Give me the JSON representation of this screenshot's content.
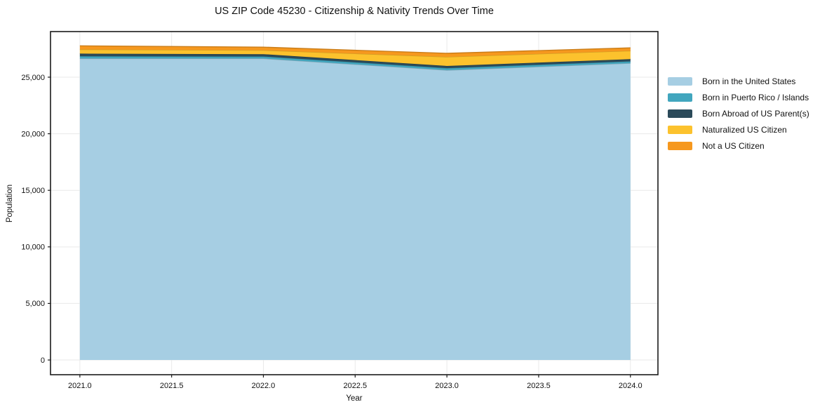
{
  "title": "US ZIP Code 45230 - Citizenship & Nativity Trends Over Time",
  "chart_data": {
    "type": "area",
    "stacked": true,
    "title": "US ZIP Code 45230 - Citizenship & Nativity Trends Over Time",
    "xlabel": "Year",
    "ylabel": "Population",
    "x": [
      2021,
      2022,
      2023,
      2024
    ],
    "series": [
      {
        "name": "Born in the United States",
        "color": "#A6CEE3",
        "values": [
          26650,
          26650,
          25620,
          26230
        ]
      },
      {
        "name": "Born in Puerto Rico / Islands",
        "color": "#41A6BE",
        "values": [
          200,
          180,
          180,
          170
        ]
      },
      {
        "name": "Born Abroad of US Parent(s)",
        "color": "#2B4A5A",
        "values": [
          230,
          200,
          190,
          190
        ]
      },
      {
        "name": "Naturalized US Citizen",
        "color": "#FCC22D",
        "values": [
          370,
          350,
          800,
          740
        ]
      },
      {
        "name": "Not a US Citizen",
        "color": "#F6981E",
        "values": [
          320,
          270,
          320,
          260
        ]
      }
    ],
    "totals": [
      27770,
      27650,
      27110,
      27590
    ],
    "x_ticks": [
      "2021.0",
      "2021.5",
      "2022.0",
      "2022.5",
      "2023.0",
      "2023.5",
      "2024.0"
    ],
    "x_tick_values": [
      2021.0,
      2021.5,
      2022.0,
      2022.5,
      2023.0,
      2023.5,
      2024.0
    ],
    "y_ticks": [
      "0",
      "5,000",
      "10,000",
      "15,000",
      "20,000",
      "25,000"
    ],
    "y_tick_values": [
      0,
      5000,
      10000,
      15000,
      20000,
      25000
    ],
    "xlim": [
      2020.84,
      2024.15
    ],
    "ylim": [
      -1300,
      29030
    ],
    "grid": true,
    "legend_position": "right",
    "background": "#ffffff"
  }
}
